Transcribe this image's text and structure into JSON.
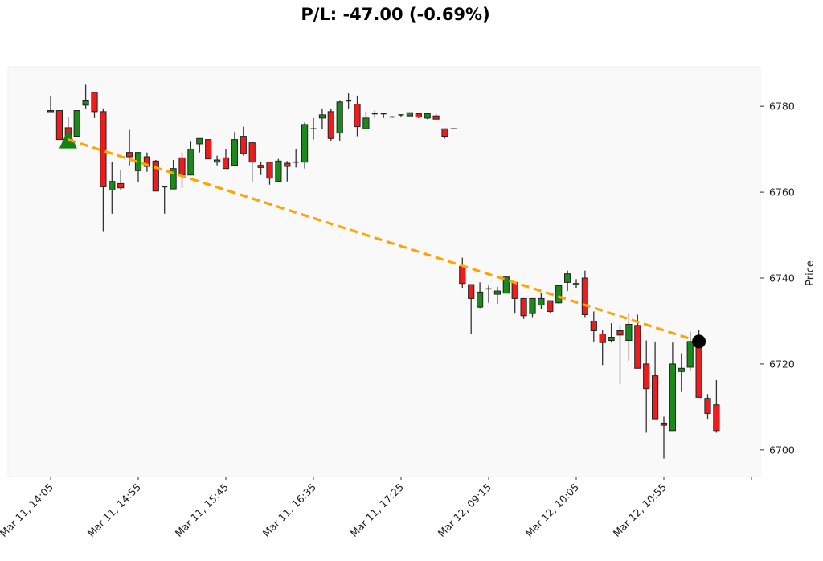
{
  "title": "P/L: -47.00 (-0.69%)",
  "colors": {
    "up": "#1b8a1b",
    "down": "#ee1c1c",
    "edge": "#222222",
    "wick": "#333333",
    "trend_line": "#ffa500",
    "entry_marker": "#138313",
    "exit_marker": "#000000",
    "plot_bg": "#f9f9f9"
  },
  "chart_data": {
    "type": "candlestick",
    "title": "P/L: -47.00 (-0.69%)",
    "xlabel": "",
    "ylabel": "Price",
    "ylim": [
      6693.8,
      6789.2
    ],
    "yticks": [
      6700,
      6720,
      6740,
      6760,
      6780
    ],
    "xticks": [
      {
        "index": 0,
        "label": "Mar 11, 14:05"
      },
      {
        "index": 10,
        "label": "Mar 11, 14:55"
      },
      {
        "index": 20,
        "label": "Mar 11, 15:45"
      },
      {
        "index": 30,
        "label": "Mar 11, 16:35"
      },
      {
        "index": 40,
        "label": "Mar 11, 17:25"
      },
      {
        "index": 50,
        "label": "Mar 12, 09:15"
      },
      {
        "index": 60,
        "label": "Mar 12, 10:05"
      },
      {
        "index": 70,
        "label": "Mar 12, 10:55"
      },
      {
        "index": 80,
        "label": ""
      }
    ],
    "grid": false,
    "candles": [
      [
        6778.75,
        6782.5,
        6778.75,
        6779.0
      ],
      [
        6779.0,
        6779.0,
        6772.25,
        6772.25
      ],
      [
        6775.0,
        6777.5,
        6771.0,
        6771.25
      ],
      [
        6773.0,
        6779.0,
        6773.0,
        6779.0
      ],
      [
        6780.25,
        6785.0,
        6779.5,
        6781.25
      ],
      [
        6783.25,
        6783.25,
        6777.25,
        6778.75
      ],
      [
        6778.75,
        6779.5,
        6750.75,
        6761.25
      ],
      [
        6760.5,
        6767.0,
        6755.0,
        6762.5
      ],
      [
        6762.0,
        6765.25,
        6760.5,
        6761.0
      ],
      [
        6769.25,
        6774.5,
        6766.25,
        6768.25
      ],
      [
        6765.0,
        6769.25,
        6762.25,
        6769.25
      ],
      [
        6768.25,
        6769.25,
        6764.75,
        6766.0
      ],
      [
        6767.25,
        6767.5,
        6760.25,
        6760.25
      ],
      [
        6761.25,
        6761.5,
        6755.0,
        6761.25
      ],
      [
        6760.75,
        6767.5,
        6760.75,
        6765.5
      ],
      [
        6768.0,
        6769.25,
        6761.0,
        6764.0
      ],
      [
        6764.0,
        6771.75,
        6764.0,
        6770.0
      ],
      [
        6771.25,
        6772.5,
        6769.25,
        6772.5
      ],
      [
        6772.25,
        6772.25,
        6767.75,
        6767.75
      ],
      [
        6767.0,
        6768.5,
        6766.25,
        6767.5
      ],
      [
        6768.0,
        6770.0,
        6765.5,
        6765.5
      ],
      [
        6766.25,
        6774.0,
        6766.25,
        6772.25
      ],
      [
        6773.0,
        6775.25,
        6768.5,
        6769.0
      ],
      [
        6771.5,
        6771.5,
        6762.25,
        6767.0
      ],
      [
        6766.25,
        6767.0,
        6764.0,
        6765.75
      ],
      [
        6767.0,
        6767.0,
        6761.75,
        6763.25
      ],
      [
        6762.5,
        6767.75,
        6762.5,
        6767.25
      ],
      [
        6766.75,
        6767.25,
        6762.5,
        6766.0
      ],
      [
        6767.0,
        6770.0,
        6765.75,
        6767.0
      ],
      [
        6767.0,
        6776.25,
        6765.5,
        6775.75
      ],
      [
        6774.75,
        6777.25,
        6772.25,
        6774.75
      ],
      [
        6777.25,
        6779.5,
        6774.75,
        6778.0
      ],
      [
        6778.75,
        6779.5,
        6772.0,
        6772.5
      ],
      [
        6773.75,
        6781.25,
        6772.0,
        6781.0
      ],
      [
        6781.25,
        6783.0,
        6779.5,
        6781.25
      ],
      [
        6780.5,
        6782.5,
        6773.0,
        6775.25
      ],
      [
        6774.75,
        6778.75,
        6774.75,
        6777.25
      ],
      [
        6778.25,
        6779.0,
        6777.25,
        6778.25
      ],
      [
        6778.25,
        6778.25,
        6777.25,
        6778.25
      ],
      [
        6777.5,
        6777.75,
        6777.5,
        6777.5
      ],
      [
        6778.0,
        6778.0,
        6777.5,
        6778.0
      ],
      [
        6777.75,
        6778.5,
        6777.75,
        6778.5
      ],
      [
        6778.25,
        6778.25,
        6777.25,
        6777.5
      ],
      [
        6777.25,
        6778.25,
        6777.0,
        6778.25
      ],
      [
        6777.75,
        6778.25,
        6777.0,
        6777.0
      ],
      [
        6774.75,
        6774.75,
        6772.5,
        6773.0
      ],
      [
        6774.75,
        6774.75,
        6774.75,
        6774.75
      ],
      [
        6742.75,
        6744.75,
        6737.75,
        6738.75
      ],
      [
        6738.5,
        6738.5,
        6727.0,
        6735.25
      ],
      [
        6733.25,
        6739.0,
        6733.0,
        6736.75
      ],
      [
        6737.5,
        6738.25,
        6734.25,
        6737.5
      ],
      [
        6736.25,
        6738.0,
        6734.0,
        6737.0
      ],
      [
        6736.5,
        6740.5,
        6736.5,
        6740.25
      ],
      [
        6739.0,
        6739.0,
        6731.75,
        6735.25
      ],
      [
        6735.25,
        6735.25,
        6730.5,
        6731.25
      ],
      [
        6731.75,
        6735.25,
        6730.75,
        6735.25
      ],
      [
        6733.75,
        6736.5,
        6732.75,
        6735.25
      ],
      [
        6734.75,
        6734.75,
        6732.0,
        6732.25
      ],
      [
        6734.25,
        6738.5,
        6734.0,
        6738.25
      ],
      [
        6739.0,
        6741.75,
        6737.0,
        6741.0
      ],
      [
        6738.5,
        6739.75,
        6737.75,
        6738.75
      ],
      [
        6740.0,
        6741.75,
        6730.75,
        6731.5
      ],
      [
        6730.0,
        6732.25,
        6725.25,
        6727.75
      ],
      [
        6727.0,
        6728.0,
        6719.75,
        6725.0
      ],
      [
        6725.5,
        6729.5,
        6725.0,
        6726.25
      ],
      [
        6727.75,
        6729.0,
        6715.25,
        6726.75
      ],
      [
        6725.5,
        6731.75,
        6720.75,
        6729.25
      ],
      [
        6729.0,
        6731.5,
        6719.0,
        6719.0
      ],
      [
        6720.0,
        6725.5,
        6704.0,
        6714.25
      ],
      [
        6717.25,
        6725.25,
        6707.25,
        6707.25
      ],
      [
        6706.25,
        6707.75,
        6698.0,
        6705.75
      ],
      [
        6704.5,
        6725.0,
        6704.5,
        6720.0
      ],
      [
        6718.25,
        6722.5,
        6713.5,
        6719.0
      ],
      [
        6719.25,
        6727.5,
        6718.5,
        6725.25
      ],
      [
        6725.0,
        6728.0,
        6712.25,
        6712.25
      ],
      [
        6712.0,
        6713.0,
        6707.25,
        6708.5
      ],
      [
        6710.5,
        6716.25,
        6704.0,
        6704.5
      ]
    ],
    "candle_format": [
      "open",
      "high",
      "low",
      "close"
    ],
    "trade": {
      "entry": {
        "index": 2,
        "price": 6772.25,
        "marker": "triangle-up"
      },
      "exit": {
        "index": 74,
        "price": 6725.25,
        "marker": "circle"
      },
      "pnl": -47.0,
      "pnl_pct": -0.69
    }
  }
}
